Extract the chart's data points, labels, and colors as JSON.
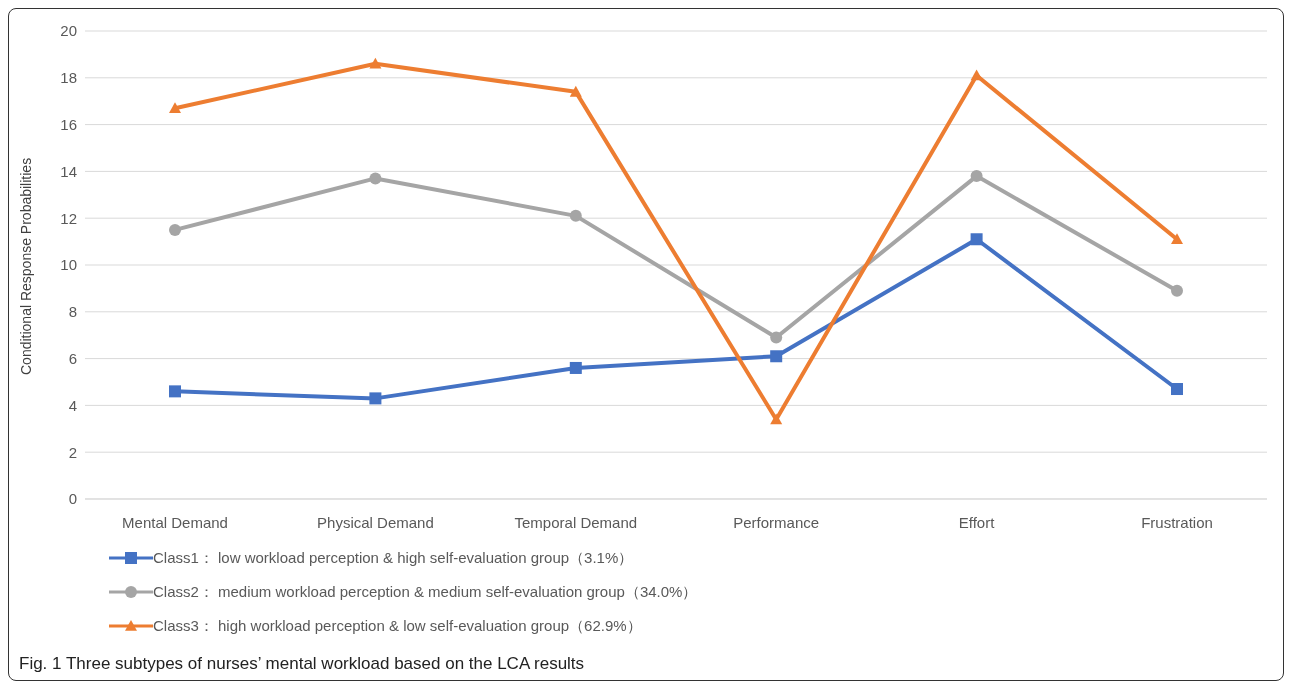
{
  "chart_data": {
    "type": "line",
    "ylabel": "Conditional Response Probabilities",
    "categories": [
      "Mental Demand",
      "Physical Demand",
      "Temporal Demand",
      "Performance",
      "Effort",
      "Frustration"
    ],
    "series": [
      {
        "name": "Class1：  low workload perception & high self-evaluation group（3.1%）",
        "color": "#4472c4",
        "marker": "square",
        "values": [
          4.6,
          4.3,
          5.6,
          6.1,
          11.1,
          4.7
        ]
      },
      {
        "name": "Class2：  medium workload perception & medium self-evaluation group（34.0%）",
        "color": "#a5a5a5",
        "marker": "circle",
        "values": [
          11.5,
          13.7,
          12.1,
          6.9,
          13.8,
          8.9
        ]
      },
      {
        "name": "Class3：  high workload perception & low self-evaluation group（62.9%）",
        "color": "#ed7d31",
        "marker": "triangle",
        "values": [
          16.7,
          18.6,
          17.4,
          3.4,
          18.1,
          11.1
        ]
      }
    ],
    "ylim": [
      0,
      20
    ],
    "yticks": [
      0,
      2,
      4,
      6,
      8,
      10,
      12,
      14,
      16,
      18,
      20
    ],
    "grid": "y",
    "legend": "bottom",
    "line_style": "solid",
    "annotations": [
      "Fig. 1 Three subtypes of nurses’ mental workload based on the LCA results"
    ]
  }
}
